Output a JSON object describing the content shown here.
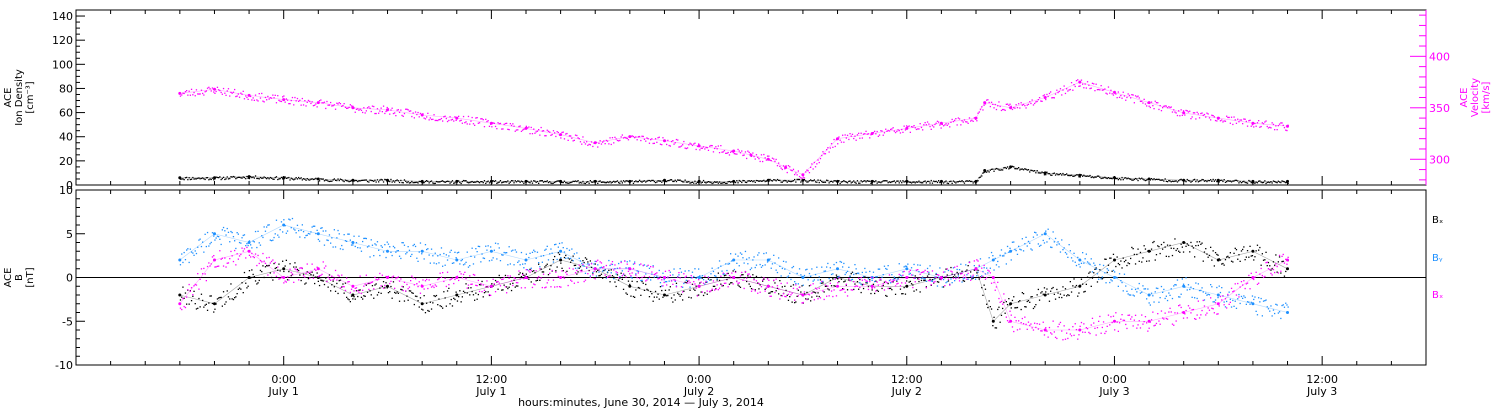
{
  "chart_data": [
    {
      "type": "scatter",
      "title": "",
      "left_axis": {
        "label_lines": [
          "ACE",
          "Ion Density",
          "[cm⁻³]"
        ],
        "ylim": [
          0,
          145
        ],
        "ticks": [
          0,
          20,
          40,
          60,
          80,
          100,
          120,
          140
        ],
        "tick_labels": [
          "0",
          "20",
          "40",
          "60",
          "80",
          "100",
          "120",
          "140"
        ]
      },
      "right_axis": {
        "label_lines": [
          "ACE",
          "Velocity",
          "[km/s]"
        ],
        "ylim": [
          275,
          445
        ],
        "ticks": [
          300,
          350,
          400
        ],
        "tick_labels": [
          "300",
          "350",
          "400"
        ],
        "color": "#ff00ff"
      },
      "series": [
        {
          "axis": "left",
          "color": "#000000",
          "x": [
            0,
            2,
            4,
            6,
            8,
            10,
            12,
            14,
            16,
            18,
            20,
            22,
            24,
            26,
            28,
            30,
            32,
            34,
            36,
            38,
            40,
            42,
            44,
            46,
            46.5,
            48,
            50,
            52,
            54,
            56,
            58,
            60,
            62,
            64
          ],
          "y": [
            6,
            6,
            7,
            6,
            5,
            4,
            4,
            3,
            3,
            3,
            3,
            3,
            3,
            3,
            4,
            3,
            3,
            4,
            4,
            3,
            3,
            3,
            3,
            3,
            12,
            15,
            10,
            8,
            6,
            5,
            4,
            4,
            3,
            3
          ]
        },
        {
          "axis": "right",
          "color": "#ff00ff",
          "x": [
            0,
            2,
            4,
            6,
            8,
            10,
            12,
            14,
            16,
            18,
            20,
            22,
            24,
            26,
            28,
            30,
            32,
            33,
            34,
            35,
            36,
            38,
            40,
            42,
            44,
            46,
            46.5,
            48,
            50,
            52,
            54,
            56,
            58,
            60,
            62,
            64
          ],
          "y": [
            364,
            368,
            362,
            358,
            355,
            350,
            348,
            343,
            340,
            335,
            330,
            324,
            316,
            322,
            318,
            313,
            308,
            304,
            300,
            292,
            285,
            320,
            325,
            330,
            335,
            340,
            355,
            350,
            360,
            375,
            365,
            355,
            345,
            340,
            335,
            332
          ]
        }
      ]
    },
    {
      "type": "scatter",
      "title": "",
      "left_axis": {
        "label_lines": [
          "ACE",
          "B",
          "[nT]"
        ],
        "ylim": [
          -10,
          10
        ],
        "ticks": [
          -10,
          -5,
          0,
          5,
          10
        ],
        "tick_labels": [
          "-10",
          "-5",
          "0",
          "5",
          "10"
        ]
      },
      "zero_line": true,
      "legend": [
        "Bₓ",
        "Bᵧ",
        "Bₓ"
      ],
      "series": [
        {
          "name": "Bₓ",
          "color": "#000000",
          "x": [
            0,
            2,
            4,
            6,
            8,
            10,
            12,
            14,
            16,
            18,
            20,
            22,
            24,
            26,
            28,
            30,
            32,
            34,
            36,
            38,
            40,
            42,
            44,
            46,
            47,
            48,
            50,
            52,
            54,
            56,
            58,
            60,
            62,
            64
          ],
          "y": [
            -2,
            -3,
            0,
            1,
            0,
            -2,
            -1,
            -3,
            -2,
            -1,
            0,
            2,
            1,
            -1,
            -2,
            -1,
            0,
            -1,
            -2,
            0,
            -1,
            -1,
            0,
            1,
            -5,
            -3,
            -2,
            -1,
            2,
            3,
            4,
            2,
            3,
            1
          ]
        },
        {
          "name": "Bᵧ",
          "color": "#1e90ff",
          "x": [
            0,
            2,
            4,
            6,
            8,
            10,
            12,
            14,
            16,
            18,
            20,
            22,
            24,
            26,
            28,
            30,
            32,
            34,
            36,
            38,
            40,
            42,
            44,
            46,
            47,
            48,
            50,
            52,
            54,
            56,
            58,
            60,
            62,
            64
          ],
          "y": [
            2,
            5,
            4,
            6,
            5,
            4,
            3,
            3,
            2,
            3,
            2,
            3,
            1,
            1,
            0,
            0,
            2,
            2,
            0,
            1,
            0,
            1,
            0,
            1,
            2,
            3,
            5,
            2,
            0,
            -2,
            -1,
            -2,
            -3,
            -4
          ]
        },
        {
          "name": "Bₓ",
          "color": "#ff00ff",
          "x": [
            0,
            2,
            4,
            6,
            8,
            10,
            12,
            14,
            16,
            18,
            20,
            22,
            24,
            26,
            28,
            30,
            32,
            34,
            36,
            38,
            40,
            42,
            44,
            46,
            47,
            48,
            50,
            52,
            54,
            56,
            58,
            60,
            62,
            64
          ],
          "y": [
            -3,
            2,
            3,
            0,
            1,
            -1,
            0,
            -1,
            0,
            -1,
            0,
            0,
            1,
            1,
            0,
            -1,
            0,
            -1,
            -2,
            -1,
            -1,
            0,
            0,
            1,
            0,
            -5,
            -6,
            -6,
            -5,
            -5,
            -4,
            -3,
            0,
            2
          ]
        }
      ]
    }
  ],
  "x_axis": {
    "xlim": [
      -6,
      72
    ],
    "major_ticks": [
      6,
      18,
      30,
      42,
      54,
      66
    ],
    "tick_labels": [
      {
        "time": "0:00",
        "date": "July 1"
      },
      {
        "time": "12:00",
        "date": "July 1"
      },
      {
        "time": "0:00",
        "date": "July 2"
      },
      {
        "time": "12:00",
        "date": "July 2"
      },
      {
        "time": "0:00",
        "date": "July 3"
      },
      {
        "time": "12:00",
        "date": "July 3"
      }
    ],
    "label": "hours:minutes, June 30, 2014 — July  3, 2014"
  }
}
